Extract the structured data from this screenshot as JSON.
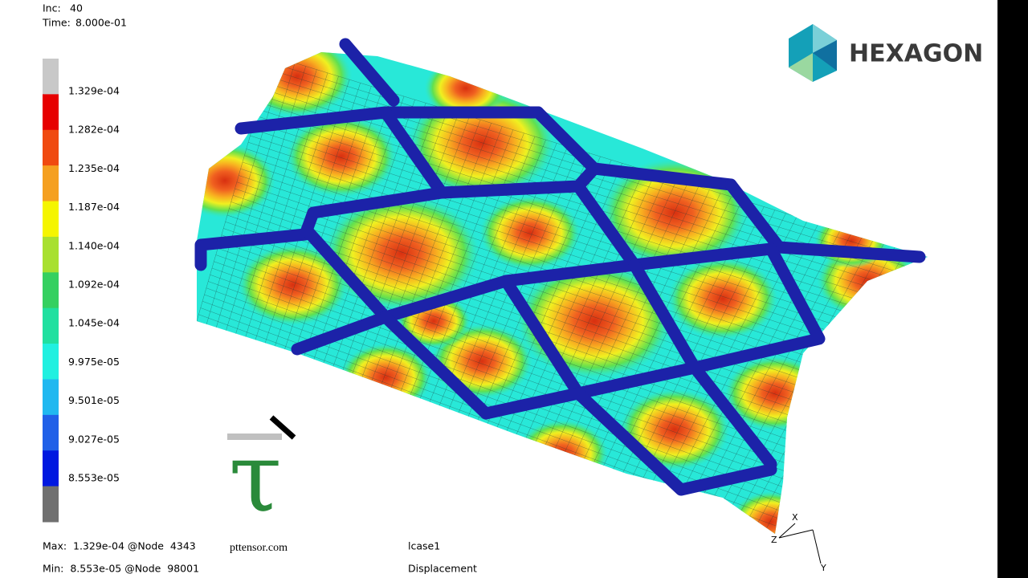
{
  "header": {
    "inc_label": "Inc:",
    "inc": 40,
    "time_label": "Time:",
    "time": "8.000e-01"
  },
  "legend": {
    "labels": [
      "1.329e-04",
      "1.282e-04",
      "1.235e-04",
      "1.187e-04",
      "1.140e-04",
      "1.092e-04",
      "1.045e-04",
      "9.975e-05",
      "9.501e-05",
      "9.027e-05",
      "8.553e-05"
    ],
    "colors": [
      "#c8c8c8",
      "#e60000",
      "#f04a10",
      "#f5a020",
      "#f5f500",
      "#a8e030",
      "#35d060",
      "#20e0a0",
      "#20f0e0",
      "#20b8f0",
      "#2060e8",
      "#0018e0",
      "#707070"
    ]
  },
  "footer": {
    "max": "Max:  1.329e-04 @Node  4343",
    "min": "Min:  8.553e-05 @Node  98001",
    "case": "lcase1",
    "quantity": "Displacement"
  },
  "logo": "HEXAGON",
  "watermark": {
    "symbol": "τ",
    "site": "pttensor.com"
  },
  "axes": {
    "x": "X",
    "y": "Y",
    "z": "Z"
  }
}
